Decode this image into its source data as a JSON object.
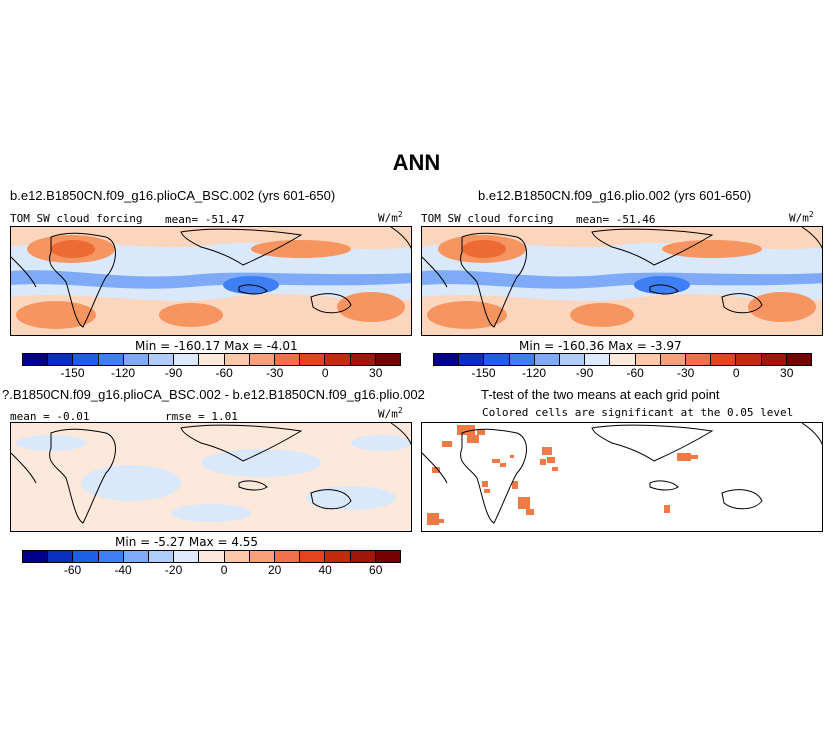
{
  "title": "ANN",
  "panel1": {
    "title": "b.e12.B1850CN.f09_g16.plioCA_BSC.002 (yrs 601-650)",
    "var_label": "TOM SW cloud forcing",
    "mean_label": "mean= -51.47",
    "units": "W/m",
    "units_sup": "2",
    "minmax": "Min = -160.17 Max = -4.01"
  },
  "panel2": {
    "title": "b.e12.B1850CN.f09_g16.plio.002 (yrs 601-650)",
    "var_label": "TOM SW cloud forcing",
    "mean_label": "mean= -51.46",
    "units": "W/m",
    "units_sup": "2",
    "minmax": "Min = -160.36 Max = -3.97"
  },
  "panel3": {
    "title": "?.B1850CN.f09_g16.plioCA_BSC.002 - b.e12.B1850CN.f09_g16.plio.002",
    "mean_label": "mean = -0.01",
    "rmse_label": "rmse = 1.01",
    "units": "W/m",
    "units_sup": "2",
    "minmax": "Min = -5.27 Max = 4.55"
  },
  "panel4": {
    "title": "T-test of the two means at each grid point",
    "subtitle": "Colored cells are significant at the 0.05 level"
  },
  "colorbar_abs": {
    "colors": [
      "#00008b",
      "#0a2fbf",
      "#1f5fe6",
      "#3f7ff5",
      "#7faaf8",
      "#b0ccfa",
      "#dde9fd",
      "#fde8dc",
      "#fcc8a8",
      "#f7a07a",
      "#f2704a",
      "#e44420",
      "#c42a0c",
      "#a0160a",
      "#780000"
    ],
    "ticks": [
      "-150",
      "-120",
      "-90",
      "-60",
      "-30",
      "0",
      "30"
    ]
  },
  "colorbar_diff": {
    "colors": [
      "#00008b",
      "#0a2fbf",
      "#1f5fe6",
      "#3f7ff5",
      "#7faaf8",
      "#b0ccfa",
      "#dde9fd",
      "#fde8dc",
      "#fcc8a8",
      "#f7a07a",
      "#f2704a",
      "#e44420",
      "#c42a0c",
      "#a0160a",
      "#780000"
    ],
    "ticks": [
      "-60",
      "-40",
      "-20",
      "0",
      "20",
      "40",
      "60"
    ]
  },
  "colors": {
    "sea_light_blue": "#d9e8fb",
    "light_orange": "#fcd5bd",
    "orange": "#f6955f",
    "strong_orange": "#ee6a35",
    "blue": "#7faaf8",
    "dark_blue": "#3f7ff5",
    "sig_cell": "#f07a45"
  }
}
